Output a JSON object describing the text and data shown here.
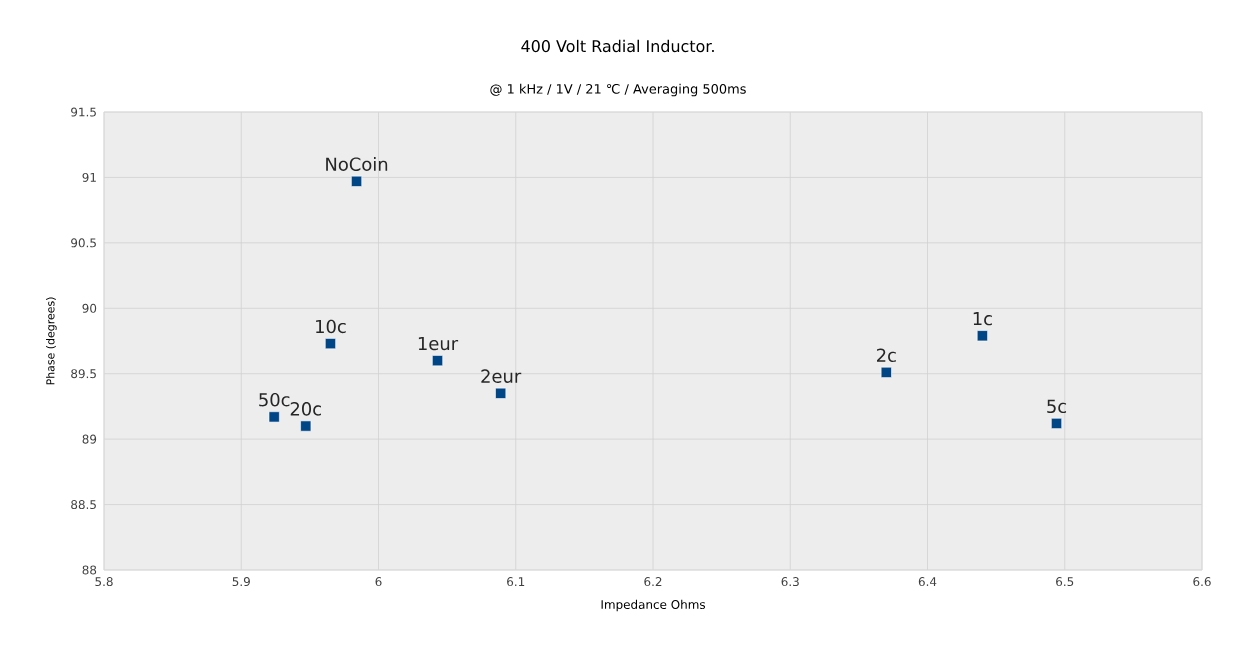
{
  "chart_data": {
    "type": "scatter",
    "title": "400 Volt Radial Inductor.",
    "subtitle": "@ 1 kHz / 1V / 21 ℃ / Averaging 500ms",
    "xlabel": "Impedance Ohms",
    "ylabel": "Phase (degrees)",
    "x": [
      5.984,
      5.965,
      6.043,
      6.089,
      5.924,
      5.947,
      6.37,
      6.44,
      6.494
    ],
    "values": [
      90.97,
      89.73,
      89.6,
      89.35,
      89.17,
      89.1,
      89.51,
      89.79,
      89.12
    ],
    "color": "#004586",
    "marker": "square",
    "grid": true,
    "xlim": [
      5.8,
      6.6
    ],
    "xticks": [
      5.8,
      5.9,
      6,
      6.1,
      6.2,
      6.3,
      6.4,
      6.5,
      6.6
    ],
    "ylim": [
      88,
      91.5
    ],
    "yticks": [
      88,
      88.5,
      89,
      89.5,
      90,
      90.5,
      91,
      91.5
    ],
    "annotations": [
      {
        "text": "NoCoin",
        "x": 5.984,
        "y": 90.97
      },
      {
        "text": "10c",
        "x": 5.965,
        "y": 89.73
      },
      {
        "text": "1eur",
        "x": 6.043,
        "y": 89.6
      },
      {
        "text": "2eur",
        "x": 6.089,
        "y": 89.35
      },
      {
        "text": "50c",
        "x": 5.924,
        "y": 89.17
      },
      {
        "text": "20c",
        "x": 5.947,
        "y": 89.1
      },
      {
        "text": "2c",
        "x": 6.37,
        "y": 89.51
      },
      {
        "text": "1c",
        "x": 6.44,
        "y": 89.79
      },
      {
        "text": "5c",
        "x": 6.494,
        "y": 89.12
      }
    ]
  }
}
